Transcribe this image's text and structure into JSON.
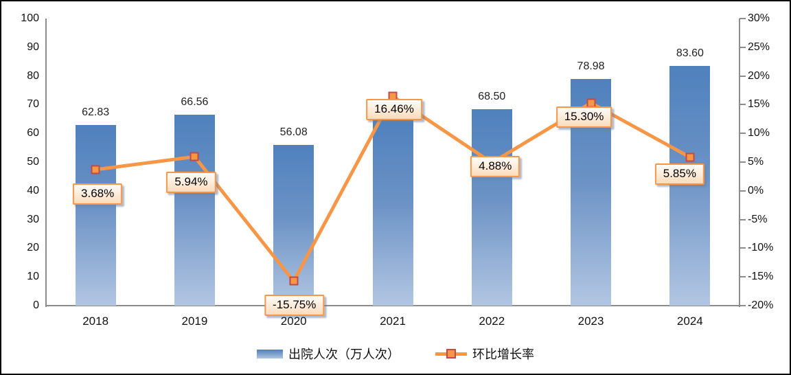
{
  "page": {
    "background_color": "#ffffff",
    "frame_border_color": "#000000"
  },
  "chart_data": {
    "type": "bar+line",
    "categories": [
      "2018",
      "2019",
      "2020",
      "2021",
      "2022",
      "2023",
      "2024"
    ],
    "series": [
      {
        "name": "出院人次（万人次）",
        "type": "bar",
        "values": [
          62.83,
          66.56,
          56.08,
          65.31,
          68.5,
          78.98,
          83.6
        ],
        "data_labels": [
          "62.83",
          "66.56",
          "56.08",
          "",
          "68.50",
          "78.98",
          "83.60"
        ],
        "note": "2021 bar value label is not visible (covered by the 16.46% line label box); bar height ≈ 65.3",
        "bar_color_top": "#4f81bd",
        "bar_color_bottom": "#b2c6e2"
      },
      {
        "name": "环比增长率",
        "type": "line",
        "values_percent": [
          3.68,
          5.94,
          -15.75,
          16.46,
          4.88,
          15.3,
          5.85
        ],
        "data_labels": [
          "3.68%",
          "5.94%",
          "-15.75%",
          "16.46%",
          "4.88%",
          "15.30%",
          "5.85%"
        ],
        "line_color": "#f79646",
        "marker_fill": "#f79646",
        "marker_border_color": "#be4b48",
        "label_box_border_color": "#f79646",
        "label_offsets": [
          {
            "dx": 3,
            "dy": 20
          },
          {
            "dx": -5,
            "dy": 22
          },
          {
            "dx": 1,
            "dy": 20
          },
          {
            "dx": 2,
            "dy": 4
          },
          {
            "dx": 5,
            "dy": -10
          },
          {
            "dx": -10,
            "dy": 5
          },
          {
            "dx": -15,
            "dy": 9
          }
        ]
      }
    ],
    "axes": {
      "left": {
        "min": 0,
        "max": 100,
        "step": 10,
        "tick_labels": [
          "100",
          "90",
          "80",
          "70",
          "60",
          "50",
          "40",
          "30",
          "20",
          "10",
          "0"
        ]
      },
      "right": {
        "min": -20,
        "max": 30,
        "step": 5,
        "tick_labels": [
          "30%",
          "25%",
          "20%",
          "15%",
          "10%",
          "5%",
          "0%",
          "-5%",
          "-10%",
          "-15%",
          "-20%"
        ]
      },
      "axis_color": "#8c8c8c",
      "grid": "off"
    },
    "legend": {
      "position": "bottom",
      "entries": [
        {
          "label": "出院人次（万人次）",
          "swatch": "blue-gradient-bar"
        },
        {
          "label": "环比增长率",
          "swatch": "orange-line-with-square-marker"
        }
      ]
    }
  }
}
